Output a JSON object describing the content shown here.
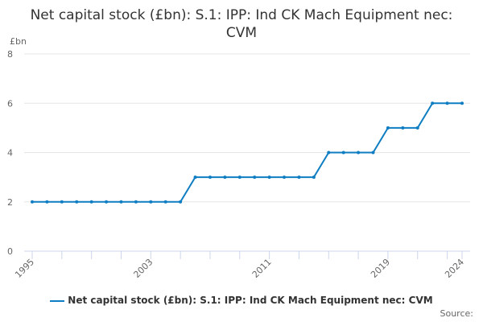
{
  "chart_data": {
    "type": "line",
    "title": "Net capital stock (£bn): S.1: IPP: Ind CK Mach Equipment nec: CVM",
    "ylabel": "£bn",
    "xlabel": "",
    "ylim": [
      0,
      8
    ],
    "yticks": [
      0,
      2,
      4,
      6,
      8
    ],
    "xtick_labels": [
      "1995",
      "2003",
      "2011",
      "2019",
      "2024"
    ],
    "x": [
      1995,
      1996,
      1997,
      1998,
      1999,
      2000,
      2001,
      2002,
      2003,
      2004,
      2005,
      2006,
      2007,
      2008,
      2009,
      2010,
      2011,
      2012,
      2013,
      2014,
      2015,
      2016,
      2017,
      2018,
      2019,
      2020,
      2021,
      2022,
      2023,
      2024
    ],
    "series": [
      {
        "name": "Net capital stock (£bn): S.1: IPP: Ind CK Mach Equipment nec: CVM",
        "color": "#0f7dc2",
        "values": [
          2,
          2,
          2,
          2,
          2,
          2,
          2,
          2,
          2,
          2,
          2,
          3,
          3,
          3,
          3,
          3,
          3,
          3,
          3,
          3,
          4,
          4,
          4,
          4,
          5,
          5,
          5,
          6,
          6,
          6
        ]
      }
    ],
    "grid": true,
    "legend": "bottom-center",
    "source_label": "Source:"
  }
}
